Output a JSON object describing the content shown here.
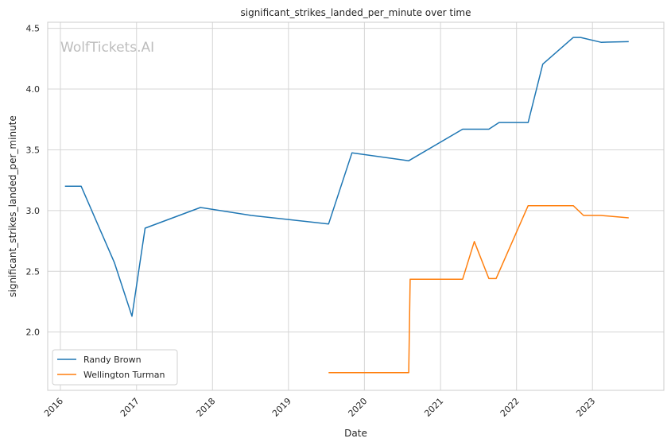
{
  "chart_data": {
    "type": "line",
    "title": "significant_strikes_landed_per_minute over time",
    "xlabel": "Date",
    "ylabel": "significant_strikes_landed_per_minute",
    "watermark": "WolfTickets.AI",
    "xlim": [
      "2015-11-01",
      "2023-12-10"
    ],
    "ylim": [
      1.52,
      4.55
    ],
    "x_ticks": [
      {
        "date": "2016-01-01",
        "label": "2016"
      },
      {
        "date": "2017-01-01",
        "label": "2017"
      },
      {
        "date": "2018-01-01",
        "label": "2018"
      },
      {
        "date": "2019-01-01",
        "label": "2019"
      },
      {
        "date": "2020-01-01",
        "label": "2020"
      },
      {
        "date": "2021-01-01",
        "label": "2021"
      },
      {
        "date": "2022-01-01",
        "label": "2022"
      },
      {
        "date": "2023-01-01",
        "label": "2023"
      }
    ],
    "y_ticks": [
      {
        "value": 2.0,
        "label": "2.0"
      },
      {
        "value": 2.5,
        "label": "2.5"
      },
      {
        "value": 3.0,
        "label": "3.0"
      },
      {
        "value": 3.5,
        "label": "3.5"
      },
      {
        "value": 4.0,
        "label": "4.0"
      },
      {
        "value": 4.5,
        "label": "4.5"
      }
    ],
    "grid": true,
    "legend_position": "bottom-left",
    "series": [
      {
        "name": "Randy Brown",
        "color": "#1f77b4",
        "points": [
          {
            "x": "2016-01-23",
            "y": 3.2
          },
          {
            "x": "2016-04-10",
            "y": 3.2
          },
          {
            "x": "2016-09-17",
            "y": 2.57
          },
          {
            "x": "2016-12-10",
            "y": 2.13
          },
          {
            "x": "2017-02-11",
            "y": 2.855
          },
          {
            "x": "2017-11-04",
            "y": 3.025
          },
          {
            "x": "2018-07-07",
            "y": 2.96
          },
          {
            "x": "2019-07-13",
            "y": 2.89
          },
          {
            "x": "2019-11-02",
            "y": 3.475
          },
          {
            "x": "2020-08-01",
            "y": 3.41
          },
          {
            "x": "2021-04-17",
            "y": 3.67
          },
          {
            "x": "2021-08-21",
            "y": 3.67
          },
          {
            "x": "2021-10-09",
            "y": 3.725
          },
          {
            "x": "2022-02-26",
            "y": 3.725
          },
          {
            "x": "2022-05-07",
            "y": 4.205
          },
          {
            "x": "2022-10-01",
            "y": 4.425
          },
          {
            "x": "2022-11-05",
            "y": 4.425
          },
          {
            "x": "2023-02-11",
            "y": 4.385
          },
          {
            "x": "2023-06-24",
            "y": 4.39
          }
        ]
      },
      {
        "name": "Wellington Turman",
        "color": "#ff7f0e",
        "points": [
          {
            "x": "2019-07-13",
            "y": 1.665
          },
          {
            "x": "2020-08-01",
            "y": 1.665
          },
          {
            "x": "2020-08-08",
            "y": 2.435
          },
          {
            "x": "2021-04-17",
            "y": 2.435
          },
          {
            "x": "2021-06-12",
            "y": 2.745
          },
          {
            "x": "2021-08-21",
            "y": 2.44
          },
          {
            "x": "2021-09-25",
            "y": 2.44
          },
          {
            "x": "2022-02-26",
            "y": 3.04
          },
          {
            "x": "2022-10-01",
            "y": 3.04
          },
          {
            "x": "2022-11-19",
            "y": 2.96
          },
          {
            "x": "2023-02-11",
            "y": 2.96
          },
          {
            "x": "2023-06-24",
            "y": 2.94
          }
        ]
      }
    ]
  }
}
